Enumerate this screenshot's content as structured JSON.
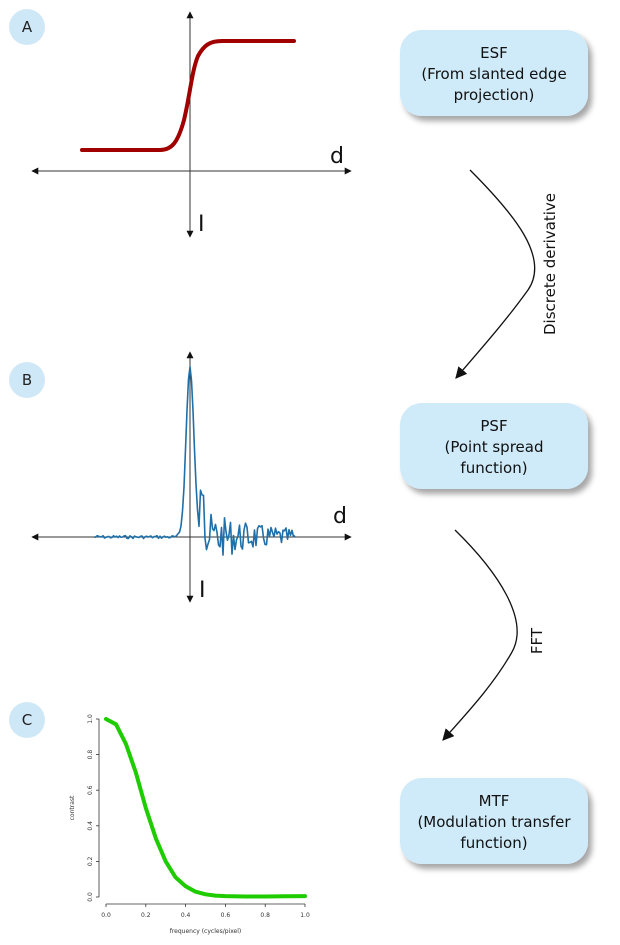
{
  "panels": [
    {
      "badge": "A",
      "x_axis_label": "d",
      "y_axis_label": "I",
      "curve_color": "#a00000"
    },
    {
      "badge": "B",
      "x_axis_label": "d",
      "y_axis_label": "I",
      "curve_color": "#1f6fa8"
    },
    {
      "badge": "C",
      "curve_color": "#1ecc00"
    }
  ],
  "badge_color": "#cfe8f7",
  "boxes": [
    {
      "lines": [
        "ESF",
        "(From slanted edge",
        "projection)"
      ]
    },
    {
      "lines": [
        "PSF",
        "(Point spread",
        "function)"
      ]
    },
    {
      "lines": [
        "MTF",
        "(Modulation transfer",
        "function)"
      ]
    }
  ],
  "box_color": "#cfeaf8",
  "arrows": [
    {
      "label": "Discrete derivative"
    },
    {
      "label": "FFT"
    }
  ],
  "chart_data": {
    "type": "line",
    "title": "",
    "xlabel": "frequency (cycles/pixel)",
    "ylabel": "contrast",
    "xlim": [
      0,
      1
    ],
    "ylim": [
      0,
      1
    ],
    "xticks": [
      "0.0",
      "0.2",
      "0.4",
      "0.6",
      "0.8",
      "1.0"
    ],
    "yticks": [
      "0.0",
      "0.2",
      "0.4",
      "0.6",
      "0.8",
      "1.0"
    ],
    "grid": false,
    "series": [
      {
        "x": [
          0.0,
          0.05,
          0.1,
          0.15,
          0.2,
          0.25,
          0.3,
          0.35,
          0.4,
          0.45,
          0.5,
          0.55,
          0.6,
          0.7,
          0.8,
          0.9,
          1.0
        ],
        "values": [
          1.0,
          0.97,
          0.86,
          0.7,
          0.5,
          0.33,
          0.2,
          0.11,
          0.06,
          0.03,
          0.015,
          0.008,
          0.005,
          0.003,
          0.003,
          0.004,
          0.005
        ]
      }
    ]
  }
}
